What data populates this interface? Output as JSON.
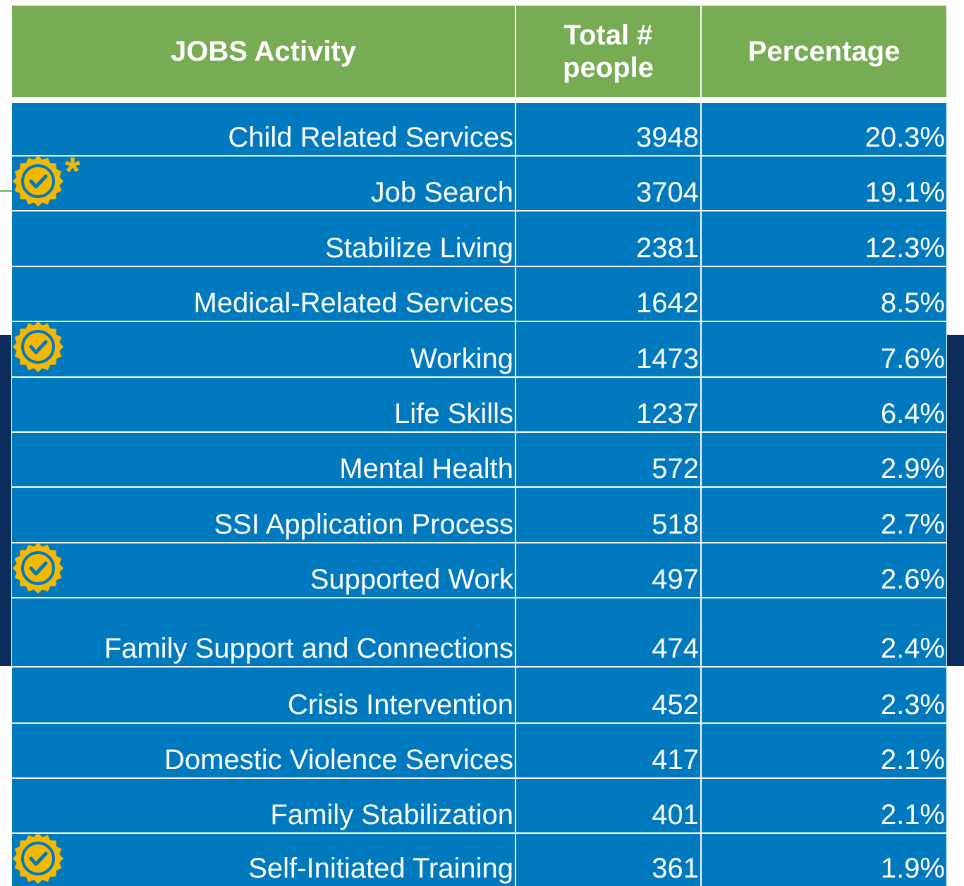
{
  "table": {
    "header": [
      "JOBS Activity",
      "Total # people",
      "Percentage"
    ],
    "rows": [
      {
        "activity": "Child Related Services",
        "total": 3948,
        "percentage": "20.3%"
      },
      {
        "activity": "Job Search",
        "total": 3704,
        "percentage": "19.1%",
        "badge": true,
        "note": "*"
      },
      {
        "activity": "Stabilize Living",
        "total": 2381,
        "percentage": "12.3%"
      },
      {
        "activity": "Medical-Related Services",
        "total": 1642,
        "percentage": "8.5%"
      },
      {
        "activity": "Working",
        "total": 1473,
        "percentage": "7.6%",
        "badge": true
      },
      {
        "activity": "Life Skills",
        "total": 1237,
        "percentage": "6.4%"
      },
      {
        "activity": "Mental Health",
        "total": 572,
        "percentage": "2.9%"
      },
      {
        "activity": "SSI Application Process",
        "total": 518,
        "percentage": "2.7%"
      },
      {
        "activity": "Supported Work",
        "total": 497,
        "percentage": "2.6%",
        "badge": true
      },
      {
        "activity": "Family Support and Connections",
        "total": 474,
        "percentage": "2.4%"
      },
      {
        "activity": "Crisis Intervention",
        "total": 452,
        "percentage": "2.3%"
      },
      {
        "activity": "Domestic Violence Services",
        "total": 417,
        "percentage": "2.1%"
      },
      {
        "activity": "Family Stabilization",
        "total": 401,
        "percentage": "2.1%"
      },
      {
        "activity": "Self-Initiated Training",
        "total": 361,
        "percentage": "1.9%",
        "badge": true
      }
    ]
  }
}
